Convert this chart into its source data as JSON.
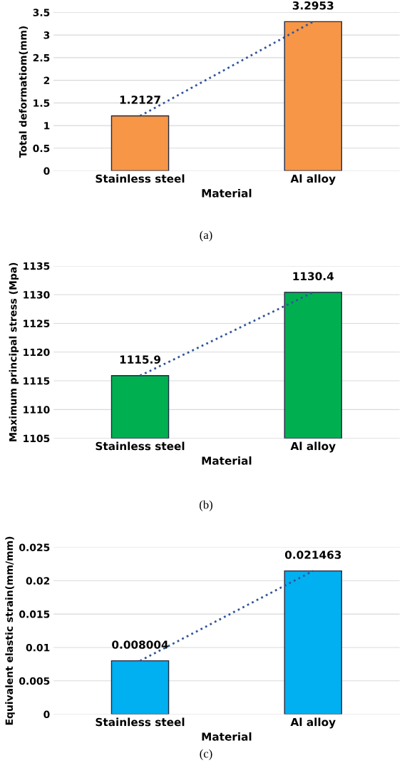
{
  "chart_data": [
    {
      "type": "bar",
      "categories": [
        "Stainless steel",
        "Al alloy"
      ],
      "xlabel": "Material",
      "ylabel": "Total deformatiom(mm)",
      "ylim": [
        0,
        3.5
      ],
      "yticks": [
        0,
        0.5,
        1,
        1.5,
        2,
        2.5,
        3,
        3.5
      ],
      "grid": "y",
      "annotations": [
        "(a)"
      ],
      "series": [
        {
          "color": "#f79646",
          "values": [
            1.2127,
            3.2953
          ],
          "value_labels": [
            "1.2127",
            "3.2953"
          ]
        },
        {
          "type": "line",
          "x": [
            "Stainless steel",
            "Al alloy"
          ],
          "color": "#2f5597",
          "line_style": "dotted",
          "values": [
            1.2127,
            3.2953
          ]
        }
      ]
    },
    {
      "type": "bar",
      "categories": [
        "Stainless steel",
        "Al alloy"
      ],
      "xlabel": "Material",
      "ylabel": "Maximum principal stress (Mpa)",
      "ylim": [
        1105,
        1135
      ],
      "yticks": [
        1105,
        1110,
        1115,
        1120,
        1125,
        1130,
        1135
      ],
      "grid": "y",
      "annotations": [
        "(b)"
      ],
      "series": [
        {
          "color": "#00b050",
          "values": [
            1115.9,
            1130.4
          ],
          "value_labels": [
            "1115.9",
            "1130.4"
          ]
        },
        {
          "type": "line",
          "x": [
            "Stainless steel",
            "Al alloy"
          ],
          "color": "#2f5597",
          "line_style": "dotted",
          "values": [
            1115.9,
            1130.4
          ]
        }
      ]
    },
    {
      "type": "bar",
      "categories": [
        "Stainless steel",
        "Al alloy"
      ],
      "xlabel": "Material",
      "ylabel": "Equivalent elastic strain(mm/mm)",
      "ylim": [
        0,
        0.025
      ],
      "yticks": [
        0,
        0.005,
        0.01,
        0.015,
        0.02,
        0.025
      ],
      "grid": "y",
      "annotations": [
        "(c)"
      ],
      "series": [
        {
          "color": "#00b0f0",
          "values": [
            0.008004,
            0.021463
          ],
          "value_labels": [
            "0.008004",
            "0.021463"
          ]
        },
        {
          "type": "line",
          "x": [
            "Stainless steel",
            "Al alloy"
          ],
          "color": "#2f5597",
          "line_style": "dotted",
          "values": [
            0.008004,
            0.021463
          ]
        }
      ]
    }
  ]
}
